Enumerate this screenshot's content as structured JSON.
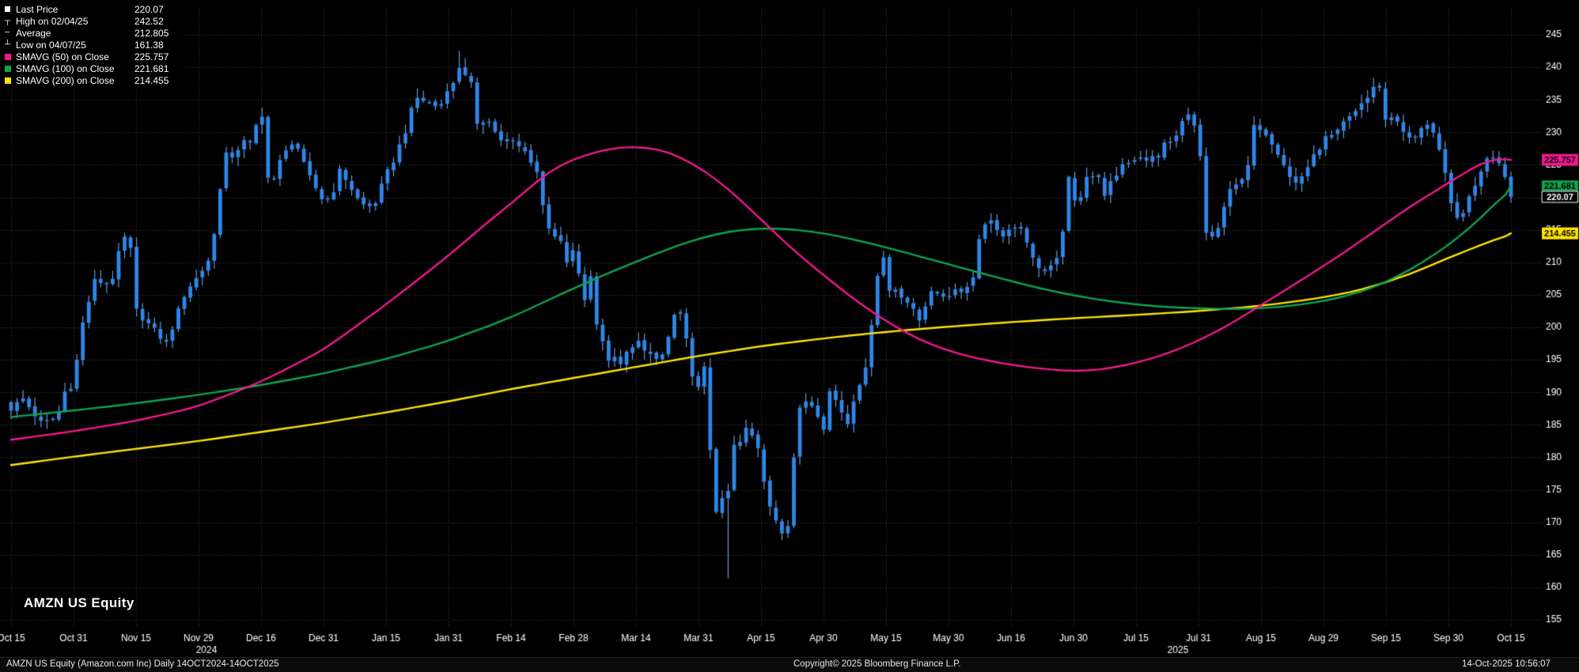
{
  "title": {
    "bottom_left": "AMZN US Equity"
  },
  "legend": {
    "items": [
      {
        "marker": "last-price-square",
        "label": "Last Price",
        "value": "220.07"
      },
      {
        "marker": "high-tick",
        "label": "High on 02/04/25",
        "value": "242.52"
      },
      {
        "marker": "average-dash",
        "label": "Average",
        "value": "212.805"
      },
      {
        "marker": "low-tick",
        "label": "Low on 04/07/25",
        "value": "161.38"
      },
      {
        "marker": "swatch",
        "color": "#f0188c",
        "label": "SMAVG (50) on Close",
        "value": "225.757"
      },
      {
        "marker": "swatch",
        "color": "#0fa34f",
        "label": "SMAVG (100) on Close",
        "value": "221.681"
      },
      {
        "marker": "swatch",
        "color": "#ffe400",
        "label": "SMAVG (200) on Close",
        "value": "214.455"
      }
    ]
  },
  "price_tags": [
    {
      "value": "225.757",
      "price": 225.757,
      "bg": "#f0188c",
      "fg": "#000000"
    },
    {
      "value": "221.681",
      "price": 221.681,
      "bg": "#0fa34f",
      "fg": "#000000"
    },
    {
      "value": "214.455",
      "price": 214.455,
      "bg": "#ffe400",
      "fg": "#000000"
    },
    {
      "value": "220.07",
      "price": 220.07,
      "bg": "#000000",
      "fg": "#ffffff",
      "border": "#ffffff"
    }
  ],
  "footer": {
    "left": "AMZN US Equity (Amazon.com Inc) Daily 14OCT2024-14OCT2025",
    "center": "Copyright© 2025 Bloomberg Finance L.P.",
    "right": "14-Oct-2025 10:56:07"
  },
  "chart_data": {
    "type": "candlestick",
    "symbol": "AMZN US Equity",
    "security_description": "AMZN US Equity (Amazon.com Inc)",
    "frequency": "Daily",
    "range": "14OCT2024-14OCT2025",
    "last_price": 220.07,
    "high": {
      "date": "02/04/25",
      "value": 242.52
    },
    "low": {
      "date": "04/07/25",
      "value": 161.38
    },
    "average": 212.805,
    "ylim": [
      155,
      245
    ],
    "yticks": [
      245,
      240,
      235,
      230,
      225,
      220,
      215,
      210,
      205,
      200,
      195,
      190,
      185,
      180,
      175,
      170,
      165,
      160,
      155
    ],
    "x_ticks": [
      "Oct 15",
      "Oct 31",
      "Nov 15",
      "Nov 29",
      "Dec 16",
      "Dec 31",
      "Jan 15",
      "Jan 31",
      "Feb 14",
      "Feb 28",
      "Mar 14",
      "Mar 31",
      "Apr 15",
      "Apr 30",
      "May 15",
      "May 30",
      "Jun 16",
      "Jun 30",
      "Jul 15",
      "Jul 31",
      "Aug 15",
      "Aug 29",
      "Sep 15",
      "Sep 30",
      "Oct 15"
    ],
    "year_labels": [
      {
        "text": "2024",
        "x": 261
      },
      {
        "text": "2025",
        "x": 1489
      }
    ],
    "num_candles": 252,
    "high_marker_t": 7.2,
    "low_marker_t": 11.47,
    "close_anchors_t": [
      [
        0,
        187.5
      ],
      [
        0.19,
        189.0
      ],
      [
        0.5,
        185.0
      ],
      [
        0.75,
        186.4
      ],
      [
        0.94,
        192.7
      ],
      [
        1.0,
        186.4
      ],
      [
        1.07,
        197.9
      ],
      [
        1.33,
        207.1
      ],
      [
        1.6,
        206.8
      ],
      [
        1.8,
        214.1
      ],
      [
        1.93,
        211.5
      ],
      [
        2.0,
        202.6
      ],
      [
        2.4,
        198.4
      ],
      [
        2.47,
        197.1
      ],
      [
        2.8,
        205.7
      ],
      [
        3.0,
        207.9
      ],
      [
        3.18,
        210.7
      ],
      [
        3.24,
        213.4
      ],
      [
        3.3,
        218.2
      ],
      [
        3.42,
        227.0
      ],
      [
        3.6,
        225.0
      ],
      [
        3.67,
        230.3
      ],
      [
        3.8,
        227.5
      ],
      [
        4.0,
        232.9
      ],
      [
        4.07,
        230.1
      ],
      [
        4.13,
        220.5
      ],
      [
        4.27,
        224.9
      ],
      [
        4.53,
        229.1
      ],
      [
        4.73,
        223.8
      ],
      [
        5.0,
        219.4
      ],
      [
        5.13,
        220.2
      ],
      [
        5.27,
        224.3
      ],
      [
        5.4,
        222.1
      ],
      [
        5.6,
        218.9
      ],
      [
        5.8,
        218.5
      ],
      [
        6.0,
        223.4
      ],
      [
        6.13,
        225.9
      ],
      [
        6.33,
        230.7
      ],
      [
        6.47,
        235.4
      ],
      [
        6.6,
        234.9
      ],
      [
        6.8,
        234.0
      ],
      [
        6.93,
        234.6
      ],
      [
        7.0,
        237.7
      ],
      [
        7.13,
        237.1
      ],
      [
        7.2,
        242.1
      ],
      [
        7.33,
        236.2
      ],
      [
        7.4,
        238.8
      ],
      [
        7.47,
        229.2
      ],
      [
        7.6,
        233.1
      ],
      [
        7.8,
        228.9
      ],
      [
        8.0,
        228.7
      ],
      [
        8.27,
        226.6
      ],
      [
        8.47,
        222.9
      ],
      [
        8.53,
        216.6
      ],
      [
        8.8,
        212.8
      ],
      [
        8.93,
        208.7
      ],
      [
        9.0,
        212.3
      ],
      [
        9.14,
        205.0
      ],
      [
        9.21,
        203.8
      ],
      [
        9.29,
        208.4
      ],
      [
        9.36,
        200.7
      ],
      [
        9.43,
        199.3
      ],
      [
        9.57,
        194.5
      ],
      [
        9.64,
        196.6
      ],
      [
        9.71,
        193.9
      ],
      [
        10.0,
        198.0
      ],
      [
        10.18,
        195.7
      ],
      [
        10.41,
        195.5
      ],
      [
        10.47,
        196.2
      ],
      [
        10.65,
        203.3
      ],
      [
        10.76,
        201.4
      ],
      [
        10.88,
        192.7
      ],
      [
        11.0,
        190.3
      ],
      [
        11.07,
        192.2
      ],
      [
        11.13,
        196.0
      ],
      [
        11.2,
        178.4
      ],
      [
        11.27,
        171.0
      ],
      [
        11.47,
        175.3
      ],
      [
        11.53,
        170.7
      ],
      [
        11.6,
        191.1
      ],
      [
        11.67,
        181.2
      ],
      [
        11.73,
        184.9
      ],
      [
        11.93,
        182.1
      ],
      [
        12.0,
        179.6
      ],
      [
        12.07,
        174.3
      ],
      [
        12.13,
        172.6
      ],
      [
        12.4,
        167.3
      ],
      [
        12.47,
        173.2
      ],
      [
        12.53,
        180.6
      ],
      [
        12.6,
        186.5
      ],
      [
        12.67,
        189.0
      ],
      [
        12.87,
        187.7
      ],
      [
        13.0,
        184.4
      ],
      [
        13.07,
        190.2
      ],
      [
        13.13,
        190.0
      ],
      [
        13.33,
        186.3
      ],
      [
        13.4,
        185.0
      ],
      [
        13.47,
        188.7
      ],
      [
        13.6,
        192.1
      ],
      [
        13.67,
        193.1
      ],
      [
        13.87,
        208.6
      ],
      [
        13.93,
        212.9
      ],
      [
        13.97,
        210.0
      ],
      [
        14.0,
        205.2
      ],
      [
        14.13,
        206.2
      ],
      [
        14.33,
        204.1
      ],
      [
        14.53,
        201.0
      ],
      [
        14.73,
        206.0
      ],
      [
        14.8,
        204.7
      ],
      [
        15.0,
        205.0
      ],
      [
        15.13,
        206.0
      ],
      [
        15.27,
        205.7
      ],
      [
        15.4,
        207.9
      ],
      [
        15.47,
        213.6
      ],
      [
        15.67,
        217.0
      ],
      [
        15.8,
        214.5
      ],
      [
        15.93,
        212.8
      ],
      [
        16.0,
        216.1
      ],
      [
        16.13,
        215.3
      ],
      [
        16.27,
        212.5
      ],
      [
        16.47,
        209.0
      ],
      [
        16.6,
        208.5
      ],
      [
        16.73,
        211.0
      ],
      [
        16.8,
        212.5
      ],
      [
        16.87,
        217.1
      ],
      [
        16.93,
        223.3
      ],
      [
        17.0,
        219.4
      ],
      [
        17.07,
        220.5
      ],
      [
        17.13,
        219.9
      ],
      [
        17.2,
        223.4
      ],
      [
        17.4,
        223.5
      ],
      [
        17.47,
        219.3
      ],
      [
        17.6,
        222.5
      ],
      [
        17.8,
        225.0
      ],
      [
        18.0,
        225.7
      ],
      [
        18.13,
        226.1
      ],
      [
        18.4,
        226.0
      ],
      [
        18.47,
        228.6
      ],
      [
        18.6,
        228.0
      ],
      [
        18.73,
        231.4
      ],
      [
        18.87,
        232.8
      ],
      [
        18.93,
        231.0
      ],
      [
        18.97,
        230.1
      ],
      [
        19.0,
        234.1
      ],
      [
        19.07,
        214.8
      ],
      [
        19.2,
        213.8
      ],
      [
        19.33,
        215.0
      ],
      [
        19.4,
        218.0
      ],
      [
        19.47,
        220.1
      ],
      [
        19.53,
        222.7
      ],
      [
        19.67,
        221.7
      ],
      [
        19.8,
        225.0
      ],
      [
        19.87,
        231.0
      ],
      [
        19.93,
        230.0
      ],
      [
        20.0,
        231.0
      ],
      [
        20.2,
        228.2
      ],
      [
        20.33,
        226.0
      ],
      [
        20.47,
        222.9
      ],
      [
        20.53,
        221.9
      ],
      [
        20.67,
        223.5
      ],
      [
        20.8,
        225.5
      ],
      [
        20.93,
        227.5
      ],
      [
        21.0,
        229.0
      ],
      [
        21.2,
        229.5
      ],
      [
        21.33,
        231.5
      ],
      [
        21.47,
        232.5
      ],
      [
        21.6,
        234.5
      ],
      [
        21.73,
        235.5
      ],
      [
        21.8,
        237.0
      ],
      [
        21.87,
        237.5
      ],
      [
        21.93,
        235.5
      ],
      [
        21.97,
        234.0
      ],
      [
        22.0,
        231.6
      ],
      [
        22.13,
        232.5
      ],
      [
        22.27,
        230.5
      ],
      [
        22.4,
        228.5
      ],
      [
        22.53,
        230.0
      ],
      [
        22.67,
        231.5
      ],
      [
        22.8,
        229.5
      ],
      [
        22.87,
        226.5
      ],
      [
        22.93,
        224.5
      ],
      [
        23.0,
        219.8
      ],
      [
        23.13,
        216.5
      ],
      [
        23.27,
        218.5
      ],
      [
        23.4,
        221.0
      ],
      [
        23.53,
        224.5
      ],
      [
        23.67,
        226.5
      ],
      [
        23.8,
        226.0
      ],
      [
        23.87,
        222.5
      ],
      [
        23.93,
        224.0
      ],
      [
        24.0,
        220.07
      ]
    ],
    "smavg": [
      {
        "name": "SMAVG (50) on Close",
        "period": 50,
        "value": 225.757,
        "color": "#f0188c",
        "anchors_t": [
          [
            0,
            182.7
          ],
          [
            1,
            184.0
          ],
          [
            2,
            185.6
          ],
          [
            3,
            187.8
          ],
          [
            4,
            191.6
          ],
          [
            5,
            196.5
          ],
          [
            6,
            203.5
          ],
          [
            7,
            211.0
          ],
          [
            7.7,
            216.8
          ],
          [
            8,
            219.0
          ],
          [
            8.6,
            224.0
          ],
          [
            9,
            226.0
          ],
          [
            9.6,
            227.6
          ],
          [
            10,
            227.9
          ],
          [
            10.5,
            227.2
          ],
          [
            11,
            224.8
          ],
          [
            11.5,
            221.2
          ],
          [
            12,
            216.6
          ],
          [
            12.5,
            212.0
          ],
          [
            13,
            208.0
          ],
          [
            13.5,
            204.2
          ],
          [
            14,
            200.9
          ],
          [
            14.5,
            198.2
          ],
          [
            15,
            196.3
          ],
          [
            15.5,
            195.1
          ],
          [
            16,
            194.2
          ],
          [
            16.5,
            193.6
          ],
          [
            17,
            193.2
          ],
          [
            17.5,
            193.5
          ],
          [
            18,
            194.5
          ],
          [
            18.5,
            195.9
          ],
          [
            19,
            197.9
          ],
          [
            19.5,
            200.4
          ],
          [
            20,
            203.4
          ],
          [
            20.5,
            206.4
          ],
          [
            21,
            209.4
          ],
          [
            21.5,
            212.6
          ],
          [
            22,
            216.0
          ],
          [
            22.5,
            219.3
          ],
          [
            23,
            222.2
          ],
          [
            23.5,
            225.2
          ],
          [
            23.8,
            226.5
          ],
          [
            24,
            225.757
          ]
        ]
      },
      {
        "name": "SMAVG (100) on Close",
        "period": 100,
        "value": 221.681,
        "color": "#0fa34f",
        "anchors_t": [
          [
            0,
            186.2
          ],
          [
            1,
            187.2
          ],
          [
            2,
            188.3
          ],
          [
            3,
            189.6
          ],
          [
            4,
            191.1
          ],
          [
            5,
            192.9
          ],
          [
            6,
            195.1
          ],
          [
            7,
            197.9
          ],
          [
            8,
            201.5
          ],
          [
            9,
            206.0
          ],
          [
            9.5,
            208.1
          ],
          [
            10,
            210.1
          ],
          [
            10.5,
            212.0
          ],
          [
            11,
            213.7
          ],
          [
            11.5,
            214.8
          ],
          [
            12,
            215.3
          ],
          [
            12.5,
            215.1
          ],
          [
            13,
            214.5
          ],
          [
            13.5,
            213.5
          ],
          [
            14,
            212.3
          ],
          [
            14.5,
            211.0
          ],
          [
            15,
            209.7
          ],
          [
            15.5,
            208.4
          ],
          [
            16,
            207.1
          ],
          [
            16.5,
            205.9
          ],
          [
            17,
            204.9
          ],
          [
            17.5,
            204.1
          ],
          [
            18,
            203.5
          ],
          [
            18.5,
            203.1
          ],
          [
            19,
            202.9
          ],
          [
            19.5,
            202.8
          ],
          [
            20,
            202.9
          ],
          [
            20.5,
            203.3
          ],
          [
            21,
            204.0
          ],
          [
            21.5,
            205.1
          ],
          [
            22,
            206.9
          ],
          [
            22.5,
            209.4
          ],
          [
            23,
            212.6
          ],
          [
            23.5,
            216.5
          ],
          [
            24,
            221.681
          ]
        ]
      },
      {
        "name": "SMAVG (200) on Close",
        "period": 200,
        "value": 214.455,
        "color": "#ffe400",
        "anchors_t": [
          [
            0,
            178.8
          ],
          [
            1,
            180.1
          ],
          [
            2,
            181.3
          ],
          [
            3,
            182.5
          ],
          [
            4,
            183.9
          ],
          [
            5,
            185.3
          ],
          [
            6,
            186.9
          ],
          [
            7,
            188.6
          ],
          [
            8,
            190.5
          ],
          [
            9,
            192.2
          ],
          [
            10,
            193.9
          ],
          [
            11,
            195.6
          ],
          [
            12,
            197.1
          ],
          [
            13,
            198.3
          ],
          [
            14,
            199.3
          ],
          [
            15,
            200.1
          ],
          [
            16,
            200.8
          ],
          [
            17,
            201.4
          ],
          [
            18,
            201.9
          ],
          [
            19,
            202.5
          ],
          [
            20,
            203.3
          ],
          [
            20.5,
            203.9
          ],
          [
            21,
            204.6
          ],
          [
            21.5,
            205.5
          ],
          [
            22,
            206.9
          ],
          [
            22.5,
            208.6
          ],
          [
            23,
            210.7
          ],
          [
            23.5,
            212.6
          ],
          [
            24,
            214.455
          ]
        ]
      }
    ],
    "colors": {
      "background": "#000000",
      "grid": "#3d3d3d",
      "candle": "#2f86e8",
      "candle_wick": "#6ea8ea",
      "axis_text": "#ffffff"
    }
  }
}
